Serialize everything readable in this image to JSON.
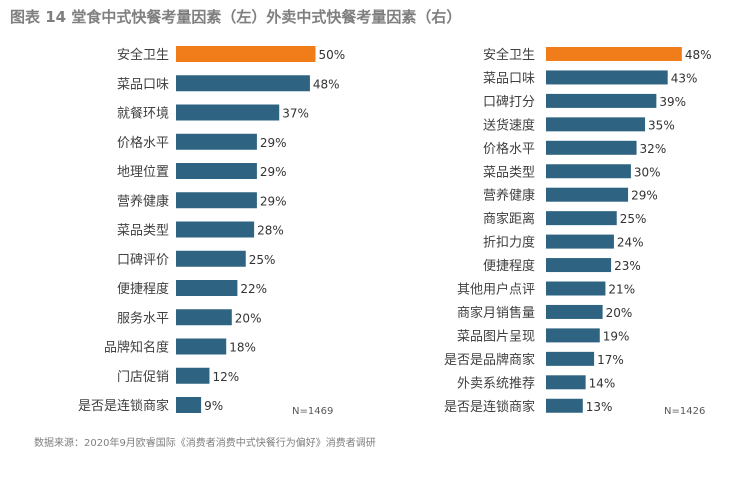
{
  "title": "图表 14 堂食中式快餐考量因素（左）外卖中式快餐考量因素（右）",
  "source": "数据来源：2020年9月欧睿国际《消费者消费中式快餐行为偏好》消费者调研",
  "colors": {
    "highlight": "#f07d1a",
    "bar": "#2e6481"
  },
  "chart_data": [
    {
      "type": "bar",
      "orientation": "horizontal",
      "categories": [
        "安全卫生",
        "菜品口味",
        "就餐环境",
        "价格水平",
        "地理位置",
        "营养健康",
        "菜品类型",
        "口碑评价",
        "便捷程度",
        "服务水平",
        "品牌知名度",
        "门店促销",
        "是否是连锁商家"
      ],
      "values": [
        50,
        48,
        37,
        29,
        29,
        29,
        28,
        25,
        22,
        20,
        18,
        12,
        9
      ],
      "value_labels": [
        "50%",
        "48%",
        "37%",
        "29%",
        "29%",
        "29%",
        "28%",
        "25%",
        "22%",
        "20%",
        "18%",
        "12%",
        "9%"
      ],
      "note": "N=1469",
      "unit": "%"
    },
    {
      "type": "bar",
      "orientation": "horizontal",
      "categories": [
        "安全卫生",
        "菜品口味",
        "口碑打分",
        "送货速度",
        "价格水平",
        "菜品类型",
        "营养健康",
        "商家距离",
        "折扣力度",
        "便捷程度",
        "其他用户点评",
        "商家月销售量",
        "菜品图片呈现",
        "是否是品牌商家",
        "外卖系统推荐",
        "是否是连锁商家"
      ],
      "values": [
        48,
        43,
        39,
        35,
        32,
        30,
        29,
        25,
        24,
        23,
        21,
        20,
        19,
        17,
        14,
        13
      ],
      "value_labels": [
        "48%",
        "43%",
        "39%",
        "35%",
        "32%",
        "30%",
        "29%",
        "25%",
        "24%",
        "23%",
        "21%",
        "20%",
        "19%",
        "17%",
        "14%",
        "13%"
      ],
      "note": "N=1426",
      "unit": "%"
    }
  ]
}
